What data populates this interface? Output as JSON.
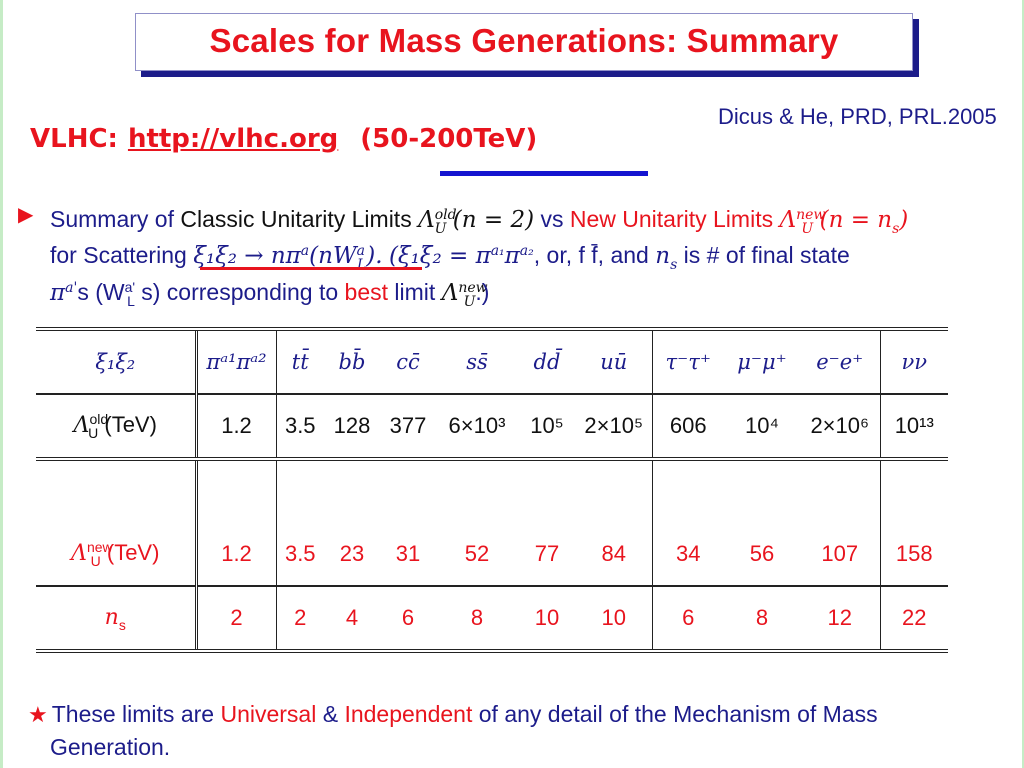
{
  "slide_title": "Scales for Mass Generations: Summary",
  "vlhc": {
    "label": "VLHC:",
    "link": "http://vlhc.org",
    "range": "(50-200TeV)"
  },
  "citation": "Dicus & He, PRD, PRL.2005",
  "summary": {
    "l1_a": "Summary of",
    "l1_b": "Classic Unitarity Limits",
    "l1_c": "Λ",
    "l1_c_sup": "old",
    "l1_c_sub": "U",
    "l1_d": "(n = 2)",
    "l1_e": "vs",
    "l1_f": "New Unitarity Limits",
    "l1_g": "Λ",
    "l1_g_sup": "new",
    "l1_g_sub": "U",
    "l1_h": "(n = n",
    "l1_h_sub": "s",
    "l1_h_end": ")",
    "l2_a": "for Scattering",
    "l2_b": "ξ₁ξ₂ → nπ",
    "l2_b_sup": "a",
    "l2_b2": "(nW",
    "l2_b2_sup": "a",
    "l2_b2_sub": "L",
    "l2_b3": ").",
    "l2_c": "(ξ₁ξ₂ = π",
    "l2_c_sup1": "a₁",
    "l2_c2": "π",
    "l2_c_sup2": "a₂",
    "l2_d": ", or, f f̄, and",
    "l2_e": "n",
    "l2_e_sub": "s",
    "l2_f": "is # of final state",
    "l3_a": "π",
    "l3_a_sup": "a'",
    "l3_b": "s (W",
    "l3_b_sup": "a'",
    "l3_b_sub": "L",
    "l3_c": "s) corresponding to",
    "l3_d": "best",
    "l3_e": "limit",
    "l3_f": "Λ",
    "l3_f_sup": "new",
    "l3_f_sub": "U",
    "l3_g": ".)"
  },
  "table": {
    "header": [
      "ξ₁ξ₂",
      "πᵃ¹πᵃ²",
      "tt̄",
      "bb̄",
      "cc̄",
      "ss̄",
      "dd̄",
      "uū",
      "τ⁻τ⁺",
      "μ⁻μ⁺",
      "e⁻e⁺",
      "νν"
    ],
    "row_old_label": "Λ",
    "row_old_sup": "old",
    "row_old_sub": "U",
    "row_old_unit": "(TeV)",
    "row_old": [
      "1.2",
      "3.5",
      "128",
      "377",
      "6×10³",
      "10⁵",
      "2×10⁵",
      "606",
      "10⁴",
      "2×10⁶",
      "10¹³"
    ],
    "row_new_label": "Λ",
    "row_new_sup": "new",
    "row_new_sub": "U",
    "row_new_unit": "(TeV)",
    "row_new": [
      "1.2",
      "3.5",
      "23",
      "31",
      "52",
      "77",
      "84",
      "34",
      "56",
      "107",
      "158"
    ],
    "row_ns_label": "n",
    "row_ns_sub": "s",
    "row_ns": [
      "2",
      "2",
      "4",
      "6",
      "8",
      "10",
      "10",
      "6",
      "8",
      "12",
      "22"
    ]
  },
  "footer": {
    "star": "★",
    "a": "These limits are",
    "b": "Universal",
    "c": "&",
    "d": "Independent",
    "e": "of any detail of the Mechanism of Mass",
    "f": "Generation."
  },
  "colors": {
    "accent_red": "#e8141e",
    "navy": "#1c1c8a",
    "blue_bar": "#1414d0"
  }
}
